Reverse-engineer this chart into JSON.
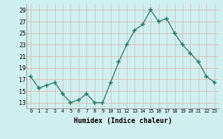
{
  "x": [
    0,
    1,
    2,
    3,
    4,
    5,
    6,
    7,
    8,
    9,
    10,
    11,
    12,
    13,
    14,
    15,
    16,
    17,
    18,
    19,
    20,
    21,
    22,
    23
  ],
  "y": [
    17.5,
    15.5,
    16,
    16.5,
    14.5,
    13,
    13.5,
    14.5,
    13,
    13,
    16.5,
    20,
    23,
    25.5,
    26.5,
    29,
    27,
    27.5,
    25,
    23,
    21.5,
    20,
    17.5,
    16.5
  ],
  "xlabel": "Humidex (Indice chaleur)",
  "ylim": [
    12,
    30
  ],
  "xlim": [
    -0.5,
    23.5
  ],
  "yticks": [
    13,
    15,
    17,
    19,
    21,
    23,
    25,
    27,
    29
  ],
  "xticks": [
    0,
    1,
    2,
    3,
    4,
    5,
    6,
    7,
    8,
    9,
    10,
    11,
    12,
    13,
    14,
    15,
    16,
    17,
    18,
    19,
    20,
    21,
    22,
    23
  ],
  "line_color": "#2e7d6e",
  "marker_color": "#2e7d6e",
  "bg_color": "#cff0ee",
  "grid_color": "#d8b8b8",
  "font_color": "#000000",
  "ylabel_fontsize": 6,
  "xlabel_fontsize": 7,
  "tick_fontsize": 5
}
